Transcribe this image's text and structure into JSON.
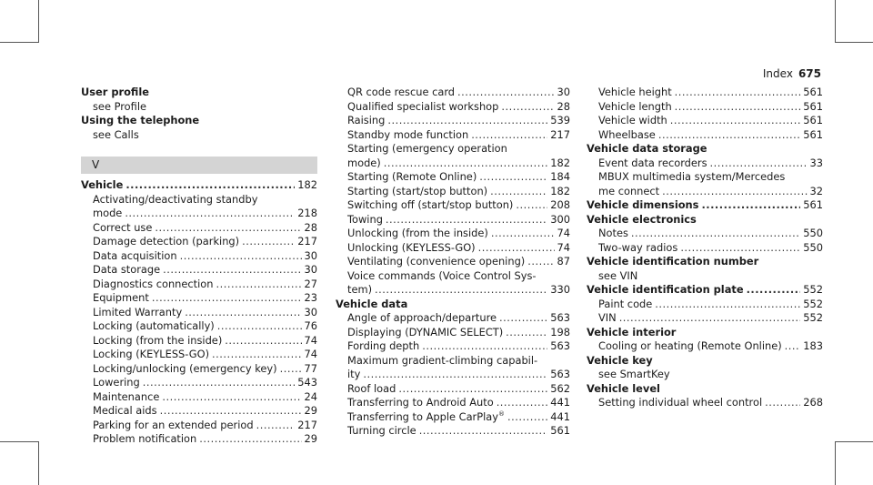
{
  "header": {
    "title": "Index",
    "page": "675"
  },
  "col1": {
    "user_profile": {
      "title": "User profile",
      "see": "see Profile"
    },
    "using_telephone": {
      "title": "Using the telephone",
      "see": "see Calls"
    },
    "section_letter": "V",
    "vehicle": {
      "title": "Vehicle",
      "page": "182"
    },
    "vehicle_items": [
      {
        "label": "Activating/deactivating standby",
        "label2": "mode",
        "page": "218"
      },
      {
        "label": "Correct use",
        "page": "28"
      },
      {
        "label": "Damage detection (parking)",
        "page": "217"
      },
      {
        "label": "Data acquisition",
        "page": "30"
      },
      {
        "label": "Data storage",
        "page": "30"
      },
      {
        "label": "Diagnostics connection",
        "page": "27"
      },
      {
        "label": "Equipment",
        "page": "23"
      },
      {
        "label": "Limited Warranty",
        "page": "30"
      },
      {
        "label": "Locking (automatically)",
        "page": "76"
      },
      {
        "label": "Locking (from the inside)",
        "page": "74"
      },
      {
        "label": "Locking (KEYLESS-GO)",
        "page": "74"
      },
      {
        "label": "Locking/unlocking (emergency key)",
        "page": "77"
      },
      {
        "label": "Lowering",
        "page": "543"
      },
      {
        "label": "Maintenance",
        "page": "24"
      },
      {
        "label": "Medical aids",
        "page": "29"
      },
      {
        "label": "Parking for an extended period",
        "page": "217"
      },
      {
        "label": "Problem notification",
        "page": "29"
      }
    ]
  },
  "col2": {
    "items_a": [
      {
        "label": "QR code rescue card",
        "page": "30"
      },
      {
        "label": "Qualified specialist workshop",
        "page": "28"
      },
      {
        "label": "Raising",
        "page": "539"
      },
      {
        "label": "Standby mode function",
        "page": "217"
      },
      {
        "label": "Starting (emergency operation",
        "label2": "mode)",
        "page": "182"
      },
      {
        "label": "Starting (Remote Online)",
        "page": "184"
      },
      {
        "label": "Starting (start/stop button)",
        "page": "182"
      },
      {
        "label": "Switching off (start/stop button)",
        "page": "208"
      },
      {
        "label": "Towing",
        "page": "300"
      },
      {
        "label": "Unlocking (from the inside)",
        "page": "74"
      },
      {
        "label": "Unlocking (KEYLESS-GO)",
        "page": "74"
      },
      {
        "label": "Ventilating (convenience opening)",
        "page": "87"
      },
      {
        "label": "Voice commands (Voice Control Sys-",
        "label2": "tem)",
        "page": "330"
      }
    ],
    "vehicle_data": {
      "title": "Vehicle data"
    },
    "items_b": [
      {
        "label": "Angle of approach/departure",
        "page": "563"
      },
      {
        "label": "Displaying (DYNAMIC SELECT)",
        "page": "198"
      },
      {
        "label": "Fording depth",
        "page": "563"
      },
      {
        "label": "Maximum gradient-climbing capabil-",
        "label2": "ity",
        "page": "563"
      },
      {
        "label": "Roof load",
        "page": "562"
      },
      {
        "label": "Transferring to Android Auto",
        "page": "441"
      },
      {
        "label": "Transferring to Apple CarPlay",
        "sup": "®",
        "page": "441"
      },
      {
        "label": "Turning circle",
        "page": "561"
      }
    ]
  },
  "col3": {
    "items_a": [
      {
        "label": "Vehicle height",
        "page": "561"
      },
      {
        "label": "Vehicle length",
        "page": "561"
      },
      {
        "label": "Vehicle width",
        "page": "561"
      },
      {
        "label": "Wheelbase",
        "page": "561"
      }
    ],
    "data_storage": {
      "title": "Vehicle data storage",
      "items": [
        {
          "label": "Event data recorders",
          "page": "33"
        },
        {
          "label": "MBUX multimedia system/Mercedes",
          "label2": "me connect",
          "page": "32"
        }
      ]
    },
    "dimensions": {
      "title": "Vehicle dimensions",
      "page": "561"
    },
    "electronics": {
      "title": "Vehicle electronics",
      "items": [
        {
          "label": "Notes",
          "page": "550"
        },
        {
          "label": "Two-way radios",
          "page": "550"
        }
      ]
    },
    "id_number": {
      "title": "Vehicle identification number",
      "see": "see VIN"
    },
    "id_plate": {
      "title": "Vehicle identification plate",
      "page": "552",
      "items": [
        {
          "label": "Paint code",
          "page": "552"
        },
        {
          "label": "VIN",
          "page": "552"
        }
      ]
    },
    "interior": {
      "title": "Vehicle interior",
      "items": [
        {
          "label": "Cooling or heating (Remote Online)",
          "page": "183"
        }
      ]
    },
    "key": {
      "title": "Vehicle key",
      "see": "see SmartKey"
    },
    "level": {
      "title": "Vehicle level",
      "items": [
        {
          "label": "Setting individual wheel control",
          "page": "268"
        }
      ]
    }
  }
}
